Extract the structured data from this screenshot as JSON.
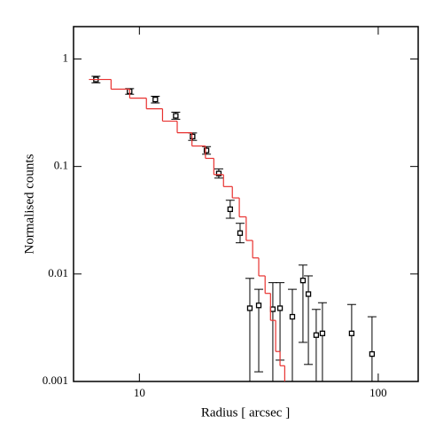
{
  "chart_data": {
    "type": "scatter",
    "xlabel": "Radius [ arcsec ]",
    "ylabel": "Normalised counts",
    "xscale": "log",
    "yscale": "log",
    "xlim": [
      5.3,
      147
    ],
    "ylim": [
      0.001,
      2
    ],
    "xticks": [
      10,
      100
    ],
    "yticks": [
      0.001,
      0.01,
      0.1,
      1
    ],
    "series": [
      {
        "type": "errorbar",
        "color": "#000000",
        "x": [
          6.58,
          9.1,
          11.66,
          14.2,
          16.7,
          19.1,
          21.5,
          24.0,
          26.4,
          29.0,
          31.6,
          36.2,
          38.8,
          43.7,
          48.4,
          51,
          55,
          58.4,
          77.4,
          94.2
        ],
        "values": [
          0.645,
          0.5,
          0.42,
          0.296,
          0.19,
          0.141,
          0.086,
          0.04,
          0.024,
          0.0048,
          0.0051,
          0.0047,
          0.0048,
          0.004,
          0.0087,
          0.0065,
          0.0027,
          0.0028,
          0.0028,
          0.0018
        ],
        "error_low": [
          0.6,
          0.47,
          0.39,
          0.275,
          0.175,
          0.13,
          0.078,
          0.033,
          0.0195,
          0.001,
          0.00123,
          0.001,
          0.00158,
          0.001,
          0.00231,
          0.00144,
          0.001,
          0.001,
          0.001,
          0.001
        ],
        "error_high": [
          0.69,
          0.53,
          0.45,
          0.32,
          0.205,
          0.153,
          0.095,
          0.0485,
          0.0296,
          0.0091,
          0.0072,
          0.0083,
          0.0083,
          0.0072,
          0.0121,
          0.0096,
          0.00468,
          0.0054,
          0.0052,
          0.004
        ]
      },
      {
        "type": "step",
        "color": "#e8312f",
        "bins": [
          6.15,
          7.61,
          9.11,
          10.7,
          12.5,
          14.4,
          16.6,
          18.9,
          20.5,
          22.5,
          24.5,
          26.2,
          28.0,
          29.8,
          31.6,
          33.6,
          35.4,
          37.2,
          38.8,
          40.6
        ],
        "values": [
          0.645,
          0.524,
          0.432,
          0.344,
          0.264,
          0.206,
          0.155,
          0.119,
          0.084,
          0.065,
          0.051,
          0.034,
          0.0205,
          0.0141,
          0.0096,
          0.0066,
          0.0037,
          0.0019,
          0.0014
        ]
      }
    ]
  }
}
